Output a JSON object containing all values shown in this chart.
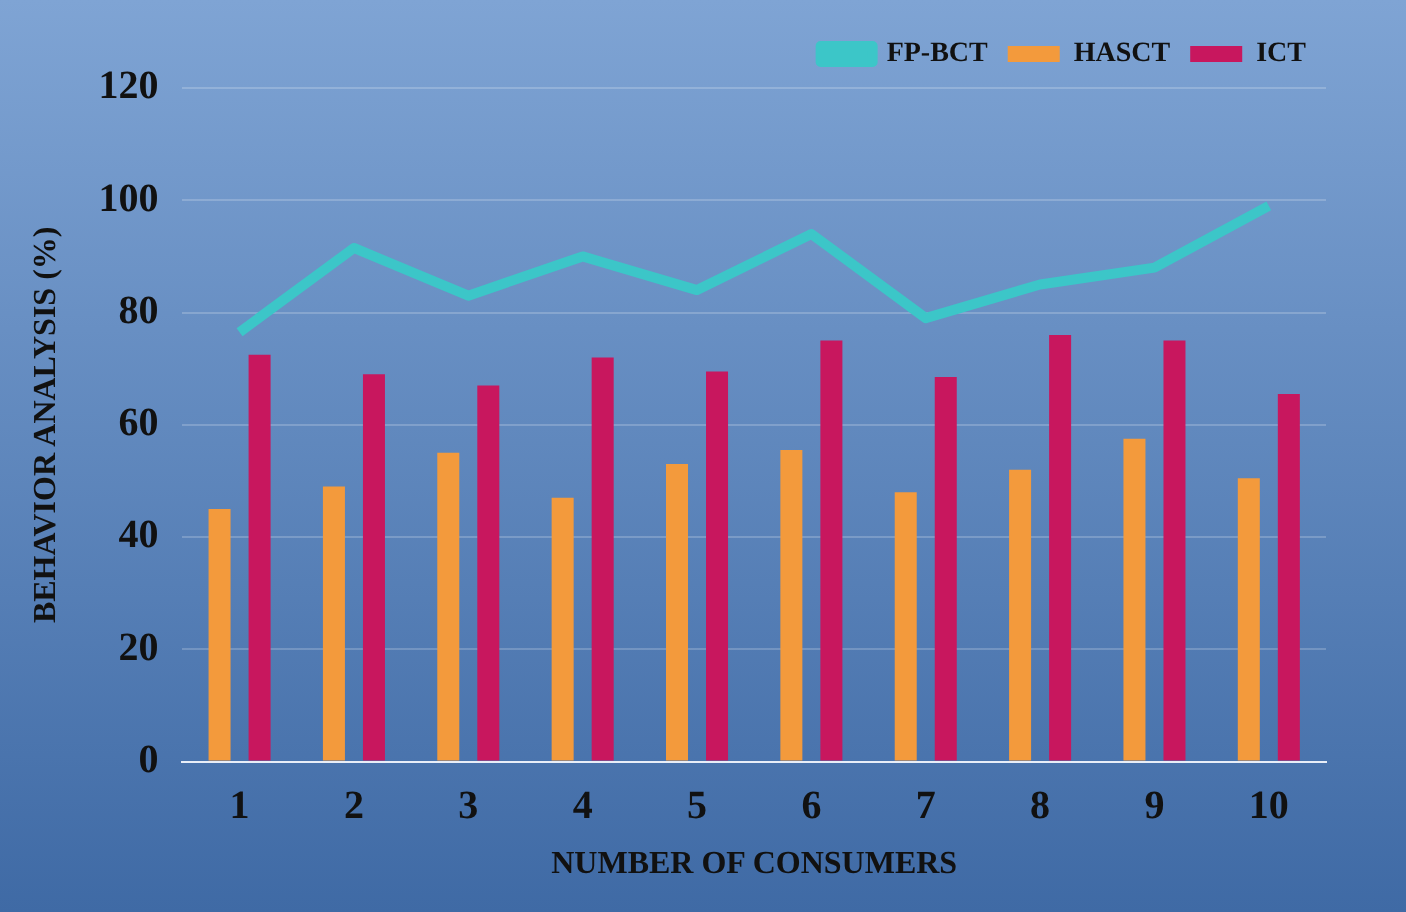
{
  "chart_data": {
    "type": "bar",
    "xlabel": "NUMBER OF CONSUMERS",
    "ylabel": "BEHAVIOR ANALYSIS (%)",
    "categories": [
      "1",
      "2",
      "3",
      "4",
      "5",
      "6",
      "7",
      "8",
      "9",
      "10"
    ],
    "series": [
      {
        "name": "HASCT",
        "color": "#f39a3c",
        "values": [
          45,
          49,
          55,
          47,
          53,
          55.5,
          48,
          52,
          57.5,
          50.5
        ]
      },
      {
        "name": "ICT",
        "color": "#c8175e",
        "values": [
          72.5,
          69,
          67,
          72,
          69.5,
          75,
          68.5,
          76,
          75,
          65.5
        ]
      },
      {
        "name": "FP-BCT",
        "type": "line",
        "color": "#3cc6c8",
        "values": [
          76.5,
          91.5,
          83,
          90,
          84,
          94,
          79,
          85,
          88,
          99
        ]
      }
    ],
    "ylim": [
      0,
      120
    ],
    "yticks": [
      0,
      20,
      40,
      60,
      80,
      100,
      120
    ],
    "grid": "y",
    "legend": "top right"
  }
}
